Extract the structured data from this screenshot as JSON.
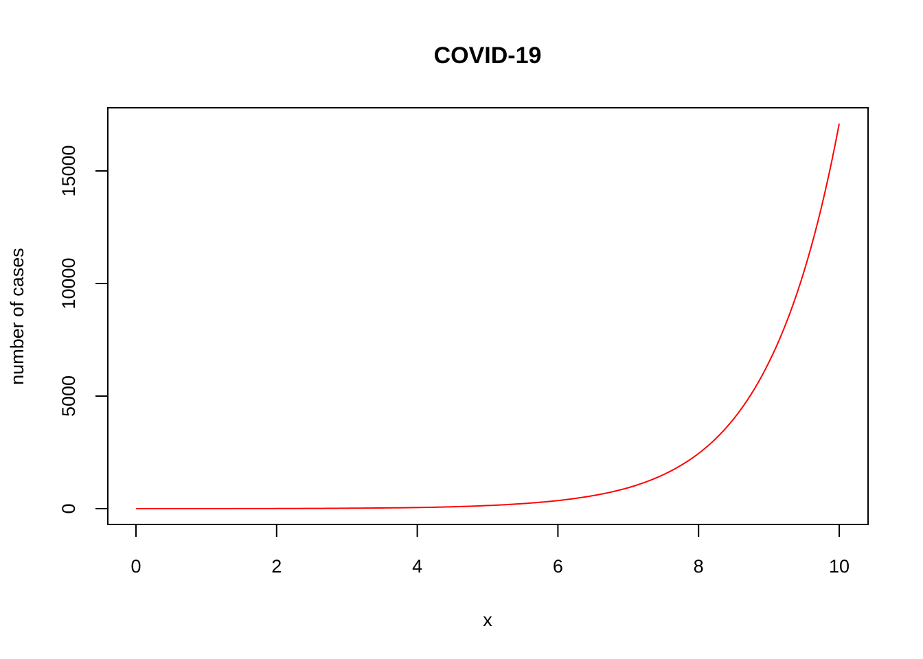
{
  "chart_data": {
    "type": "line",
    "title": "COVID-19",
    "xlabel": "x",
    "ylabel": "number of cases",
    "xlim": [
      0,
      10
    ],
    "ylim": [
      -600,
      17950
    ],
    "x_ticks": [
      0,
      2,
      4,
      6,
      8,
      10
    ],
    "x_tick_labels": [
      "0",
      "2",
      "4",
      "6",
      "8",
      "10"
    ],
    "y_ticks": [
      0,
      5000,
      10000,
      15000
    ],
    "y_tick_labels": [
      "0",
      "5000",
      "10000",
      "15000"
    ],
    "grid": false,
    "series": [
      {
        "color": "#ff0000",
        "x": [
          0,
          1,
          2,
          3,
          4,
          5,
          6,
          7,
          8,
          9,
          10
        ],
        "y": [
          0,
          1,
          6,
          20,
          50,
          140,
          360,
          930,
          2450,
          6500,
          17100
        ]
      }
    ]
  }
}
